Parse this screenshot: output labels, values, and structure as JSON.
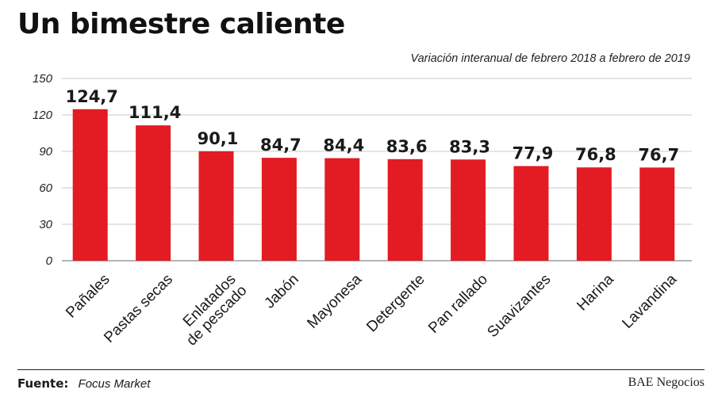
{
  "chart_data": {
    "type": "bar",
    "title": "Un bimestre caliente",
    "subtitle": "Variación interanual de febrero 2018 a febrero de 2019",
    "categories": [
      [
        "Pañales"
      ],
      [
        "Pastas secas"
      ],
      [
        "Enlatados",
        "de pescado"
      ],
      [
        "Jabón"
      ],
      [
        "Mayonesa"
      ],
      [
        "Detergente"
      ],
      [
        "Pan rallado"
      ],
      [
        "Suavizantes"
      ],
      [
        "Harina"
      ],
      [
        "Lavandina"
      ]
    ],
    "values": [
      124.7,
      111.4,
      90.1,
      84.7,
      84.4,
      83.6,
      83.3,
      77.9,
      76.8,
      76.7
    ],
    "value_labels": [
      "124,7",
      "111,4",
      "90,1",
      "84,7",
      "84,4",
      "83,6",
      "83,3",
      "77,9",
      "76,8",
      "76,7"
    ],
    "ylim": [
      0,
      150
    ],
    "yticks": [
      0,
      30,
      60,
      90,
      120,
      150
    ],
    "grid": true,
    "bar_color": "#e31b23",
    "xlabel": "",
    "ylabel": ""
  },
  "footer": {
    "source_label": "Fuente:",
    "source_value": "Focus Market",
    "brand": "BAE Negocios"
  }
}
